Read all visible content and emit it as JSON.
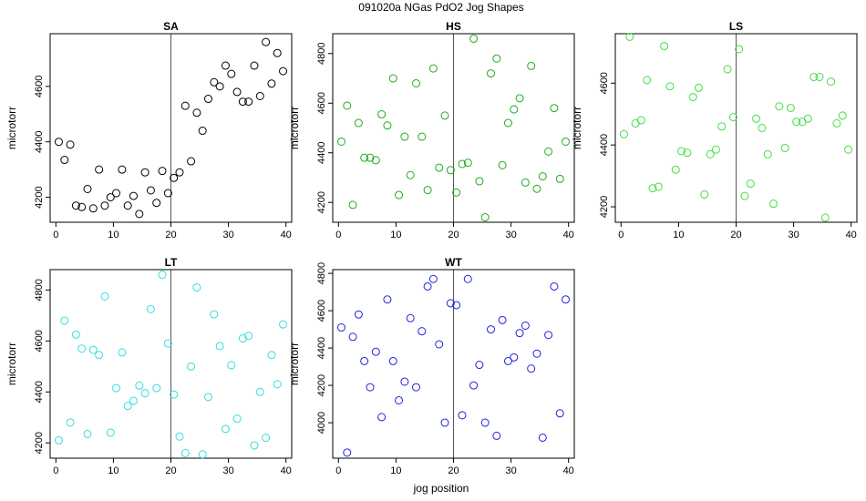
{
  "figure": {
    "title": "091020a   NGas PdO2 Jog Shapes",
    "xlabel": "jog position"
  },
  "chart_data": [
    {
      "type": "scatter",
      "title": "SA",
      "ylabel": "microtorr",
      "color": "#000000",
      "xlim": [
        -1,
        41
      ],
      "xticks": [
        0,
        10,
        20,
        30,
        40
      ],
      "ylim": [
        4110,
        4790
      ],
      "yticks": [
        4200,
        4400,
        4600
      ],
      "vline": 20,
      "x": [
        0.5,
        1.5,
        2.5,
        3.5,
        4.5,
        5.5,
        6.5,
        7.5,
        8.5,
        9.5,
        10.5,
        11.5,
        12.5,
        13.5,
        14.5,
        15.5,
        16.5,
        17.5,
        18.5,
        19.5,
        20.5,
        21.5,
        22.5,
        23.5,
        24.5,
        25.5,
        26.5,
        27.5,
        28.5,
        29.5,
        30.5,
        31.5,
        32.5,
        33.5,
        34.5,
        35.5,
        36.5,
        37.5,
        38.5,
        39.5
      ],
      "y": [
        4400,
        4335,
        4390,
        4170,
        4165,
        4230,
        4160,
        4300,
        4170,
        4200,
        4215,
        4300,
        4170,
        4205,
        4140,
        4290,
        4225,
        4180,
        4295,
        4215,
        4270,
        4290,
        4530,
        4330,
        4505,
        4440,
        4555,
        4615,
        4600,
        4675,
        4645,
        4580,
        4545,
        4545,
        4675,
        4565,
        4760,
        4610,
        4720,
        4655
      ]
    },
    {
      "type": "scatter",
      "title": "HS",
      "ylabel": "microtorr",
      "color": "#22aa22",
      "xlim": [
        -1,
        41
      ],
      "xticks": [
        0,
        10,
        20,
        30,
        40
      ],
      "ylim": [
        4120,
        4880
      ],
      "yticks": [
        4200,
        4400,
        4600,
        4800
      ],
      "vline": 20,
      "x": [
        0.5,
        1.5,
        2.5,
        3.5,
        4.5,
        5.5,
        6.5,
        7.5,
        8.5,
        9.5,
        10.5,
        11.5,
        12.5,
        13.5,
        14.5,
        15.5,
        16.5,
        17.5,
        18.5,
        19.5,
        20.5,
        21.5,
        22.5,
        23.5,
        24.5,
        25.5,
        26.5,
        27.5,
        28.5,
        29.5,
        30.5,
        31.5,
        32.5,
        33.5,
        34.5,
        35.5,
        36.5,
        37.5,
        38.5,
        39.5
      ],
      "y": [
        4445,
        4590,
        4190,
        4520,
        4380,
        4380,
        4370,
        4555,
        4510,
        4700,
        4230,
        4465,
        4310,
        4680,
        4465,
        4250,
        4740,
        4340,
        4550,
        4330,
        4240,
        4355,
        4360,
        4860,
        4285,
        4140,
        4720,
        4780,
        4350,
        4520,
        4575,
        4620,
        4280,
        4750,
        4255,
        4305,
        4405,
        4580,
        4295,
        4445
      ]
    },
    {
      "type": "scatter",
      "title": "LS",
      "ylabel": "microtorr",
      "color": "#44dd44",
      "xlim": [
        -1,
        41
      ],
      "xticks": [
        0,
        10,
        20,
        30,
        40
      ],
      "ylim": [
        4150,
        4760
      ],
      "yticks": [
        4200,
        4400,
        4600
      ],
      "vline": 20,
      "x": [
        0.5,
        1.5,
        2.5,
        3.5,
        4.5,
        5.5,
        6.5,
        7.5,
        8.5,
        9.5,
        10.5,
        11.5,
        12.5,
        13.5,
        14.5,
        15.5,
        16.5,
        17.5,
        18.5,
        19.5,
        20.5,
        21.5,
        22.5,
        23.5,
        24.5,
        25.5,
        26.5,
        27.5,
        28.5,
        29.5,
        30.5,
        31.5,
        32.5,
        33.5,
        34.5,
        35.5,
        36.5,
        37.5,
        38.5,
        39.5
      ],
      "y": [
        4435,
        4750,
        4470,
        4480,
        4610,
        4260,
        4265,
        4720,
        4590,
        4320,
        4380,
        4375,
        4555,
        4585,
        4240,
        4370,
        4385,
        4460,
        4645,
        4490,
        4710,
        4235,
        4275,
        4485,
        4455,
        4370,
        4210,
        4525,
        4390,
        4520,
        4475,
        4475,
        4485,
        4620,
        4620,
        4165,
        4605,
        4470,
        4495,
        4385
      ]
    },
    {
      "type": "scatter",
      "title": "LT",
      "ylabel": "microtorr",
      "color": "#33dddd",
      "xlim": [
        -1,
        41
      ],
      "xticks": [
        0,
        10,
        20,
        30,
        40
      ],
      "ylim": [
        4140,
        4880
      ],
      "yticks": [
        4200,
        4400,
        4600,
        4800
      ],
      "vline": 20,
      "x": [
        0.5,
        1.5,
        2.5,
        3.5,
        4.5,
        5.5,
        6.5,
        7.5,
        8.5,
        9.5,
        10.5,
        11.5,
        12.5,
        13.5,
        14.5,
        15.5,
        16.5,
        17.5,
        18.5,
        19.5,
        20.5,
        21.5,
        22.5,
        23.5,
        24.5,
        25.5,
        26.5,
        27.5,
        28.5,
        29.5,
        30.5,
        31.5,
        32.5,
        33.5,
        34.5,
        35.5,
        36.5,
        37.5,
        38.5,
        39.5
      ],
      "y": [
        4210,
        4680,
        4280,
        4625,
        4570,
        4235,
        4565,
        4545,
        4775,
        4240,
        4415,
        4555,
        4345,
        4365,
        4425,
        4395,
        4725,
        4415,
        4860,
        4590,
        4390,
        4225,
        4160,
        4500,
        4810,
        4155,
        4380,
        4705,
        4580,
        4255,
        4505,
        4295,
        4610,
        4620,
        4190,
        4400,
        4220,
        4545,
        4430,
        4665
      ]
    },
    {
      "type": "scatter",
      "title": "WT",
      "ylabel": "microtorr",
      "color": "#2222dd",
      "xlim": [
        -1,
        41
      ],
      "xticks": [
        0,
        10,
        20,
        30,
        40
      ],
      "ylim": [
        3810,
        4820
      ],
      "yticks": [
        4000,
        4200,
        4400,
        4600,
        4800
      ],
      "vline": 20,
      "x": [
        0.5,
        1.5,
        2.5,
        3.5,
        4.5,
        5.5,
        6.5,
        7.5,
        8.5,
        9.5,
        10.5,
        11.5,
        12.5,
        13.5,
        14.5,
        15.5,
        16.5,
        17.5,
        18.5,
        19.5,
        20.5,
        21.5,
        22.5,
        23.5,
        24.5,
        25.5,
        26.5,
        27.5,
        28.5,
        29.5,
        30.5,
        31.5,
        32.5,
        33.5,
        34.5,
        35.5,
        36.5,
        37.5,
        38.5,
        39.5
      ],
      "y": [
        4510,
        3840,
        4460,
        4580,
        4330,
        4190,
        4380,
        4030,
        4660,
        4330,
        4120,
        4220,
        4560,
        4190,
        4490,
        4730,
        4770,
        4420,
        4000,
        4640,
        4630,
        4040,
        4770,
        4200,
        4310,
        4000,
        4500,
        3930,
        4550,
        4330,
        4350,
        4480,
        4520,
        4290,
        4370,
        3920,
        4470,
        4730,
        4050,
        4660
      ]
    }
  ]
}
